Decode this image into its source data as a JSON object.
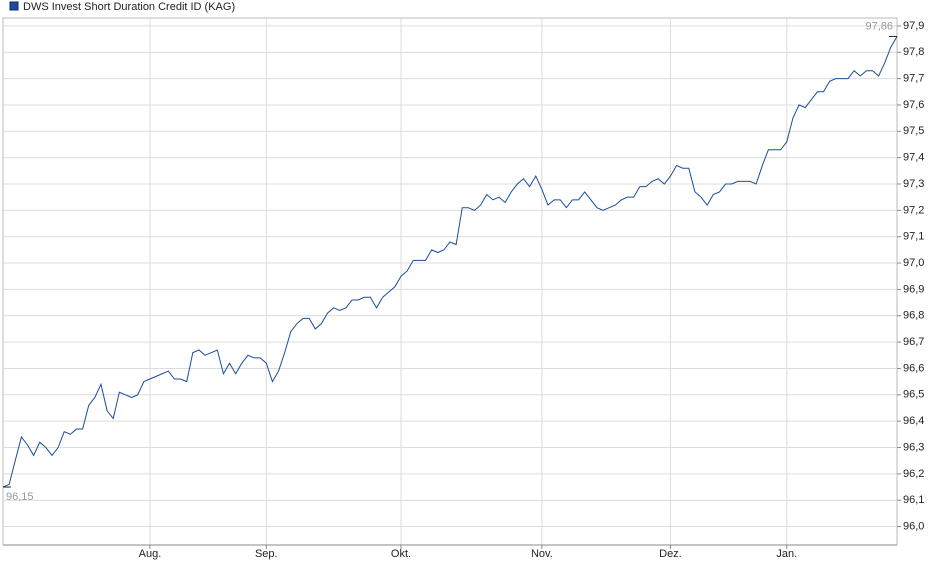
{
  "chart_data": {
    "type": "line",
    "ylim": [
      95.93,
      97.93
    ],
    "yticks": [
      {
        "value": 96.0,
        "label": "96,0"
      },
      {
        "value": 96.1,
        "label": "96,1"
      },
      {
        "value": 96.2,
        "label": "96,2"
      },
      {
        "value": 96.3,
        "label": "96,3"
      },
      {
        "value": 96.4,
        "label": "96,4"
      },
      {
        "value": 96.5,
        "label": "96,5"
      },
      {
        "value": 96.6,
        "label": "96,6"
      },
      {
        "value": 96.7,
        "label": "96,7"
      },
      {
        "value": 96.8,
        "label": "96,8"
      },
      {
        "value": 96.9,
        "label": "96,9"
      },
      {
        "value": 97.0,
        "label": "97,0"
      },
      {
        "value": 97.1,
        "label": "97,1"
      },
      {
        "value": 97.2,
        "label": "97,2"
      },
      {
        "value": 97.3,
        "label": "97,3"
      },
      {
        "value": 97.4,
        "label": "97,4"
      },
      {
        "value": 97.5,
        "label": "97,5"
      },
      {
        "value": 97.6,
        "label": "97,6"
      },
      {
        "value": 97.7,
        "label": "97,7"
      },
      {
        "value": 97.8,
        "label": "97,8"
      },
      {
        "value": 97.9,
        "label": "97,9"
      }
    ],
    "grid": true,
    "categories": [
      null,
      null,
      null,
      null,
      null,
      null,
      null,
      null,
      null,
      null,
      null,
      null,
      null,
      null,
      null,
      null,
      null,
      null,
      null,
      null,
      null,
      null,
      null,
      null,
      "Aug.",
      null,
      null,
      null,
      null,
      null,
      null,
      null,
      null,
      null,
      null,
      null,
      null,
      null,
      null,
      null,
      null,
      null,
      null,
      "Sep.",
      null,
      null,
      null,
      null,
      null,
      null,
      null,
      null,
      null,
      null,
      null,
      null,
      null,
      null,
      null,
      null,
      null,
      null,
      null,
      null,
      null,
      "Okt.",
      null,
      null,
      null,
      null,
      null,
      null,
      null,
      null,
      null,
      null,
      null,
      null,
      null,
      null,
      null,
      null,
      null,
      null,
      null,
      null,
      null,
      null,
      "Nov.",
      null,
      null,
      null,
      null,
      null,
      null,
      null,
      null,
      null,
      null,
      null,
      null,
      null,
      null,
      null,
      null,
      null,
      null,
      null,
      null,
      "Dez.",
      null,
      null,
      null,
      null,
      null,
      null,
      null,
      null,
      null,
      null,
      null,
      null,
      null,
      null,
      null,
      null,
      null,
      null,
      "Jan.",
      null,
      null,
      null,
      null,
      null,
      null,
      null,
      null,
      null,
      null,
      null,
      null,
      null,
      null,
      null,
      null,
      null,
      null
    ],
    "series": [
      {
        "name": "DWS Invest Short Duration Credit ID (KAG)",
        "color": "#1a4d9c",
        "values": [
          96.15,
          96.16,
          96.25,
          96.34,
          96.31,
          96.27,
          96.32,
          96.3,
          96.27,
          96.3,
          96.36,
          96.35,
          96.37,
          96.37,
          96.46,
          96.49,
          96.54,
          96.44,
          96.41,
          96.51,
          96.5,
          96.49,
          96.5,
          96.55,
          96.56,
          96.57,
          96.58,
          96.59,
          96.56,
          96.56,
          96.55,
          96.66,
          96.67,
          96.65,
          96.66,
          96.67,
          96.58,
          96.62,
          96.58,
          96.62,
          96.65,
          96.64,
          96.64,
          96.62,
          96.55,
          96.59,
          96.66,
          96.74,
          96.77,
          96.79,
          96.79,
          96.75,
          96.77,
          96.81,
          96.83,
          96.82,
          96.83,
          96.86,
          96.86,
          96.87,
          96.87,
          96.83,
          96.87,
          96.89,
          96.91,
          96.95,
          96.97,
          97.01,
          97.01,
          97.01,
          97.05,
          97.04,
          97.05,
          97.08,
          97.07,
          97.21,
          97.21,
          97.2,
          97.22,
          97.26,
          97.24,
          97.25,
          97.23,
          97.27,
          97.3,
          97.32,
          97.29,
          97.33,
          97.28,
          97.22,
          97.24,
          97.24,
          97.21,
          97.24,
          97.24,
          97.27,
          97.24,
          97.21,
          97.2,
          97.21,
          97.22,
          97.24,
          97.25,
          97.25,
          97.29,
          97.29,
          97.31,
          97.32,
          97.3,
          97.33,
          97.37,
          97.36,
          97.36,
          97.27,
          97.25,
          97.22,
          97.26,
          97.27,
          97.3,
          97.3,
          97.31,
          97.31,
          97.31,
          97.3,
          97.37,
          97.43,
          97.43,
          97.43,
          97.46,
          97.55,
          97.6,
          97.59,
          97.62,
          97.65,
          97.65,
          97.69,
          97.7,
          97.7,
          97.7,
          97.73,
          97.71,
          97.73,
          97.73,
          97.71,
          97.76,
          97.82,
          97.86
        ]
      }
    ],
    "annotations": [
      "96,15",
      "97,86"
    ]
  }
}
